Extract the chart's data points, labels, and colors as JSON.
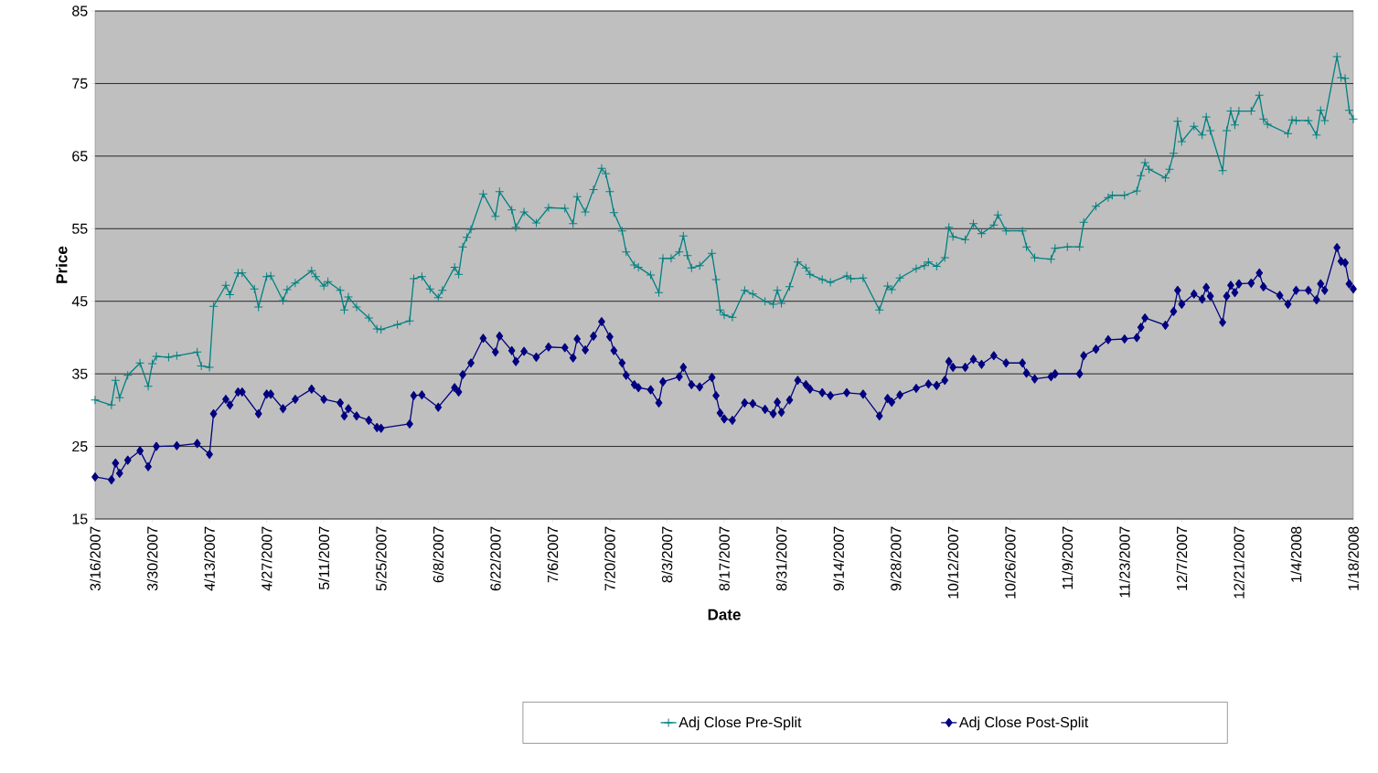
{
  "chart_data": {
    "type": "line",
    "xlabel": "Date",
    "ylabel": "Price",
    "xlim": [
      "2007-03-16",
      "2008-01-18"
    ],
    "ylim": [
      15,
      85
    ],
    "xticks": [
      {
        "value": "2007-03-16",
        "label": "3/16/2007"
      },
      {
        "value": "2007-03-30",
        "label": "3/30/2007"
      },
      {
        "value": "2007-04-13",
        "label": "4/13/2007"
      },
      {
        "value": "2007-04-27",
        "label": "4/27/2007"
      },
      {
        "value": "2007-05-11",
        "label": "5/11/2007"
      },
      {
        "value": "2007-05-25",
        "label": "5/25/2007"
      },
      {
        "value": "2007-06-08",
        "label": "6/8/2007"
      },
      {
        "value": "2007-06-22",
        "label": "6/22/2007"
      },
      {
        "value": "2007-07-06",
        "label": "7/6/2007"
      },
      {
        "value": "2007-07-20",
        "label": "7/20/2007"
      },
      {
        "value": "2007-08-03",
        "label": "8/3/2007"
      },
      {
        "value": "2007-08-17",
        "label": "8/17/2007"
      },
      {
        "value": "2007-08-31",
        "label": "8/31/2007"
      },
      {
        "value": "2007-09-14",
        "label": "9/14/2007"
      },
      {
        "value": "2007-09-28",
        "label": "9/28/2007"
      },
      {
        "value": "2007-10-12",
        "label": "10/12/2007"
      },
      {
        "value": "2007-10-26",
        "label": "10/26/2007"
      },
      {
        "value": "2007-11-09",
        "label": "11/9/2007"
      },
      {
        "value": "2007-11-23",
        "label": "11/23/2007"
      },
      {
        "value": "2007-12-07",
        "label": "12/7/2007"
      },
      {
        "value": "2007-12-21",
        "label": "12/21/2007"
      },
      {
        "value": "2008-01-04",
        "label": "1/4/2008"
      },
      {
        "value": "2008-01-18",
        "label": "1/18/2008"
      }
    ],
    "yticks": [
      15,
      25,
      35,
      45,
      55,
      65,
      75,
      85
    ],
    "grid": "y",
    "legend": "bottom",
    "line_style": "solid",
    "series": [
      {
        "name": "Adj Close Pre-Split",
        "color": "#008080",
        "marker": "cross",
        "x": [
          "2007-03-16",
          "2007-03-20",
          "2007-03-21",
          "2007-03-22",
          "2007-03-24",
          "2007-03-27",
          "2007-03-29",
          "2007-03-30",
          "2007-03-31",
          "2007-04-03",
          "2007-04-05",
          "2007-04-10",
          "2007-04-11",
          "2007-04-13",
          "2007-04-14",
          "2007-04-17",
          "2007-04-18",
          "2007-04-20",
          "2007-04-21",
          "2007-04-24",
          "2007-04-25",
          "2007-04-27",
          "2007-04-28",
          "2007-05-01",
          "2007-05-02",
          "2007-05-04",
          "2007-05-08",
          "2007-05-09",
          "2007-05-11",
          "2007-05-12",
          "2007-05-15",
          "2007-05-16",
          "2007-05-17",
          "2007-05-19",
          "2007-05-22",
          "2007-05-24",
          "2007-05-25",
          "2007-05-29",
          "2007-06-01",
          "2007-06-02",
          "2007-06-04",
          "2007-06-06",
          "2007-06-08",
          "2007-06-09",
          "2007-06-12",
          "2007-06-13",
          "2007-06-14",
          "2007-06-15",
          "2007-06-16",
          "2007-06-19",
          "2007-06-22",
          "2007-06-23",
          "2007-06-26",
          "2007-06-27",
          "2007-06-29",
          "2007-07-02",
          "2007-07-05",
          "2007-07-09",
          "2007-07-11",
          "2007-07-12",
          "2007-07-14",
          "2007-07-16",
          "2007-07-18",
          "2007-07-19",
          "2007-07-20",
          "2007-07-21",
          "2007-07-23",
          "2007-07-24",
          "2007-07-26",
          "2007-07-27",
          "2007-07-30",
          "2007-08-01",
          "2007-08-02",
          "2007-08-04",
          "2007-08-06",
          "2007-08-07",
          "2007-08-08",
          "2007-08-09",
          "2007-08-11",
          "2007-08-14",
          "2007-08-15",
          "2007-08-16",
          "2007-08-17",
          "2007-08-19",
          "2007-08-22",
          "2007-08-24",
          "2007-08-27",
          "2007-08-29",
          "2007-08-30",
          "2007-08-31",
          "2007-09-02",
          "2007-09-04",
          "2007-09-06",
          "2007-09-07",
          "2007-09-10",
          "2007-09-12",
          "2007-09-16",
          "2007-09-17",
          "2007-09-20",
          "2007-09-24",
          "2007-09-26",
          "2007-09-27",
          "2007-09-29",
          "2007-10-03",
          "2007-10-05",
          "2007-10-06",
          "2007-10-08",
          "2007-10-10",
          "2007-10-11",
          "2007-10-12",
          "2007-10-15",
          "2007-10-17",
          "2007-10-19",
          "2007-10-22",
          "2007-10-23",
          "2007-10-25",
          "2007-10-29",
          "2007-10-30",
          "2007-11-01",
          "2007-11-05",
          "2007-11-06",
          "2007-11-09",
          "2007-11-12",
          "2007-11-13",
          "2007-11-16",
          "2007-11-19",
          "2007-11-20",
          "2007-11-23",
          "2007-11-26",
          "2007-11-27",
          "2007-11-28",
          "2007-11-29",
          "2007-12-03",
          "2007-12-04",
          "2007-12-05",
          "2007-12-06",
          "2007-12-07",
          "2007-12-10",
          "2007-12-12",
          "2007-12-13",
          "2007-12-14",
          "2007-12-17",
          "2007-12-18",
          "2007-12-19",
          "2007-12-20",
          "2007-12-21",
          "2007-12-24",
          "2007-12-26",
          "2007-12-27",
          "2007-12-28",
          "2008-01-02",
          "2008-01-03",
          "2008-01-04",
          "2008-01-07",
          "2008-01-09",
          "2008-01-10",
          "2008-01-11",
          "2008-01-14",
          "2008-01-15",
          "2008-01-16",
          "2008-01-17",
          "2008-01-18"
        ],
        "values": [
          31.4,
          30.7,
          34.1,
          31.7,
          34.8,
          36.5,
          33.3,
          36.4,
          37.4,
          37.3,
          37.5,
          38.0,
          36.1,
          35.9,
          44.3,
          47.2,
          45.9,
          48.9,
          48.9,
          46.7,
          44.2,
          48.4,
          48.5,
          45.1,
          46.6,
          47.5,
          49.2,
          48.4,
          47.1,
          47.7,
          46.5,
          43.8,
          45.6,
          44.2,
          42.7,
          41.2,
          41.1,
          41.8,
          42.3,
          48.1,
          48.4,
          46.7,
          45.5,
          46.5,
          49.7,
          48.7,
          52.5,
          53.8,
          54.9,
          59.8,
          56.7,
          60.1,
          57.6,
          55.2,
          57.3,
          55.8,
          57.9,
          57.8,
          55.7,
          59.4,
          57.3,
          60.4,
          63.3,
          62.6,
          60.1,
          57.2,
          54.7,
          51.8,
          50.0,
          49.7,
          48.6,
          46.2,
          50.9,
          50.9,
          51.8,
          54.0,
          51.3,
          49.6,
          49.9,
          51.6,
          48.0,
          43.8,
          43.1,
          42.8,
          46.5,
          46.0,
          45.0,
          44.6,
          46.5,
          44.7,
          47.0,
          50.4,
          49.6,
          48.7,
          48.0,
          47.6,
          48.5,
          48.1,
          48.2,
          43.8,
          47.1,
          46.6,
          48.2,
          49.5,
          49.9,
          50.4,
          49.8,
          51.0,
          55.2,
          53.9,
          53.5,
          55.7,
          54.3,
          55.5,
          56.9,
          54.7,
          54.7,
          52.5,
          51.0,
          50.8,
          52.3,
          52.5,
          52.5,
          55.9,
          58.1,
          59.3,
          59.6,
          59.6,
          60.2,
          62.3,
          64.1,
          63.2,
          62.0,
          63.2,
          65.4,
          69.8,
          67.0,
          69.1,
          67.9,
          70.4,
          68.5,
          63.0,
          68.5,
          71.2,
          69.3,
          71.2,
          71.2,
          73.4,
          70.1,
          69.4,
          68.1,
          70.0,
          69.9,
          69.9,
          67.9,
          71.3,
          69.9,
          78.7,
          75.8,
          75.7,
          71.3,
          70.1
        ]
      },
      {
        "name": "Adj Close Post-Split",
        "color": "#000080",
        "marker": "diamond",
        "x": [
          "2007-03-16",
          "2007-03-20",
          "2007-03-21",
          "2007-03-22",
          "2007-03-24",
          "2007-03-27",
          "2007-03-29",
          "2007-03-31",
          "2007-04-05",
          "2007-04-10",
          "2007-04-13",
          "2007-04-14",
          "2007-04-17",
          "2007-04-18",
          "2007-04-20",
          "2007-04-21",
          "2007-04-25",
          "2007-04-27",
          "2007-04-28",
          "2007-05-01",
          "2007-05-04",
          "2007-05-08",
          "2007-05-11",
          "2007-05-15",
          "2007-05-16",
          "2007-05-17",
          "2007-05-19",
          "2007-05-22",
          "2007-05-24",
          "2007-05-25",
          "2007-06-01",
          "2007-06-02",
          "2007-06-04",
          "2007-06-08",
          "2007-06-12",
          "2007-06-13",
          "2007-06-14",
          "2007-06-16",
          "2007-06-19",
          "2007-06-22",
          "2007-06-23",
          "2007-06-26",
          "2007-06-27",
          "2007-06-29",
          "2007-07-02",
          "2007-07-05",
          "2007-07-09",
          "2007-07-11",
          "2007-07-12",
          "2007-07-14",
          "2007-07-16",
          "2007-07-18",
          "2007-07-20",
          "2007-07-21",
          "2007-07-23",
          "2007-07-24",
          "2007-07-26",
          "2007-07-27",
          "2007-07-30",
          "2007-08-01",
          "2007-08-02",
          "2007-08-06",
          "2007-08-07",
          "2007-08-09",
          "2007-08-11",
          "2007-08-14",
          "2007-08-15",
          "2007-08-16",
          "2007-08-17",
          "2007-08-19",
          "2007-08-22",
          "2007-08-24",
          "2007-08-27",
          "2007-08-29",
          "2007-08-30",
          "2007-08-31",
          "2007-09-02",
          "2007-09-04",
          "2007-09-06",
          "2007-09-07",
          "2007-09-10",
          "2007-09-12",
          "2007-09-16",
          "2007-09-20",
          "2007-09-24",
          "2007-09-26",
          "2007-09-27",
          "2007-09-29",
          "2007-10-03",
          "2007-10-06",
          "2007-10-08",
          "2007-10-10",
          "2007-10-11",
          "2007-10-12",
          "2007-10-15",
          "2007-10-17",
          "2007-10-19",
          "2007-10-22",
          "2007-10-25",
          "2007-10-29",
          "2007-10-30",
          "2007-11-01",
          "2007-11-05",
          "2007-11-06",
          "2007-11-12",
          "2007-11-13",
          "2007-11-16",
          "2007-11-19",
          "2007-11-23",
          "2007-11-26",
          "2007-11-27",
          "2007-11-28",
          "2007-12-03",
          "2007-12-05",
          "2007-12-06",
          "2007-12-07",
          "2007-12-10",
          "2007-12-12",
          "2007-12-13",
          "2007-12-14",
          "2007-12-17",
          "2007-12-18",
          "2007-12-19",
          "2007-12-20",
          "2007-12-21",
          "2007-12-24",
          "2007-12-26",
          "2007-12-27",
          "2007-12-31",
          "2008-01-02",
          "2008-01-04",
          "2008-01-07",
          "2008-01-09",
          "2008-01-10",
          "2008-01-11",
          "2008-01-14",
          "2008-01-15",
          "2008-01-16",
          "2008-01-17",
          "2008-01-18"
        ],
        "values": [
          20.8,
          20.4,
          22.7,
          21.3,
          23.1,
          24.4,
          22.2,
          25.0,
          25.1,
          25.4,
          23.9,
          29.5,
          31.5,
          30.7,
          32.5,
          32.5,
          29.5,
          32.2,
          32.2,
          30.2,
          31.5,
          32.9,
          31.5,
          31.0,
          29.2,
          30.2,
          29.2,
          28.6,
          27.6,
          27.5,
          28.1,
          32.0,
          32.1,
          30.4,
          33.1,
          32.5,
          34.9,
          36.5,
          39.9,
          38.0,
          40.2,
          38.2,
          36.7,
          38.1,
          37.3,
          38.7,
          38.6,
          37.2,
          39.8,
          38.3,
          40.2,
          42.2,
          40.1,
          38.2,
          36.5,
          34.8,
          33.5,
          33.1,
          32.8,
          31.0,
          33.9,
          34.6,
          35.9,
          33.5,
          33.2,
          34.5,
          32.0,
          29.6,
          28.8,
          28.6,
          31.0,
          30.9,
          30.1,
          29.5,
          31.1,
          29.7,
          31.4,
          34.1,
          33.5,
          32.9,
          32.4,
          32.0,
          32.4,
          32.2,
          29.2,
          31.6,
          31.1,
          32.1,
          33.0,
          33.6,
          33.4,
          34.1,
          36.7,
          35.9,
          35.9,
          37.0,
          36.3,
          37.5,
          36.5,
          36.5,
          35.1,
          34.3,
          34.6,
          35.0,
          35.0,
          37.5,
          38.4,
          39.7,
          39.8,
          40.0,
          41.4,
          42.7,
          41.7,
          43.6,
          46.5,
          44.6,
          46.0,
          45.3,
          46.9,
          45.7,
          42.1,
          45.7,
          47.2,
          46.2,
          47.4,
          47.5,
          48.9,
          47.0,
          45.8,
          44.6,
          46.5,
          46.5,
          45.2,
          47.4,
          46.5,
          52.4,
          50.5,
          50.3,
          47.4,
          46.7
        ]
      }
    ]
  }
}
